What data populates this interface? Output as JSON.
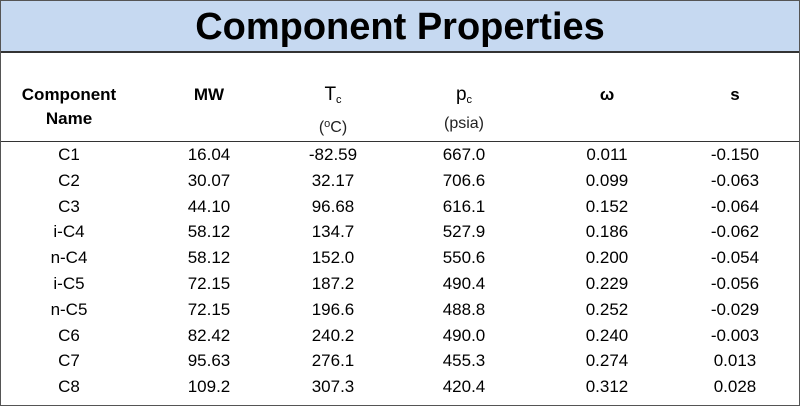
{
  "title": "Component Properties",
  "header": [
    {
      "lines": [
        "Component",
        "Name"
      ]
    },
    {
      "lines": [
        "MW"
      ]
    },
    {
      "main": "T",
      "sub": "c",
      "unit": {
        "pre": "(",
        "sup": "o",
        "post": "C)"
      }
    },
    {
      "main": "p",
      "sub": "c",
      "unit": {
        "text": "(psia)"
      }
    },
    {
      "lines": [
        "ω"
      ]
    },
    {
      "lines": [
        "s"
      ]
    }
  ],
  "table": {
    "rows": [
      [
        "C1",
        "16.04",
        "-82.59",
        "667.0",
        "0.011",
        "-0.150"
      ],
      [
        "C2",
        "30.07",
        "32.17",
        "706.6",
        "0.099",
        "-0.063"
      ],
      [
        "C3",
        "44.10",
        "96.68",
        "616.1",
        "0.152",
        "-0.064"
      ],
      [
        "i-C4",
        "58.12",
        "134.7",
        "527.9",
        "0.186",
        "-0.062"
      ],
      [
        "n-C4",
        "58.12",
        "152.0",
        "550.6",
        "0.200",
        "-0.054"
      ],
      [
        "i-C5",
        "72.15",
        "187.2",
        "490.4",
        "0.229",
        "-0.056"
      ],
      [
        "n-C5",
        "72.15",
        "196.6",
        "488.8",
        "0.252",
        "-0.029"
      ],
      [
        "C6",
        "82.42",
        "240.2",
        "490.0",
        "0.240",
        "-0.003"
      ],
      [
        "C7",
        "95.63",
        "276.1",
        "455.3",
        "0.274",
        "0.013"
      ],
      [
        "C8",
        "109.2",
        "307.3",
        "420.4",
        "0.312",
        "0.028"
      ]
    ]
  }
}
